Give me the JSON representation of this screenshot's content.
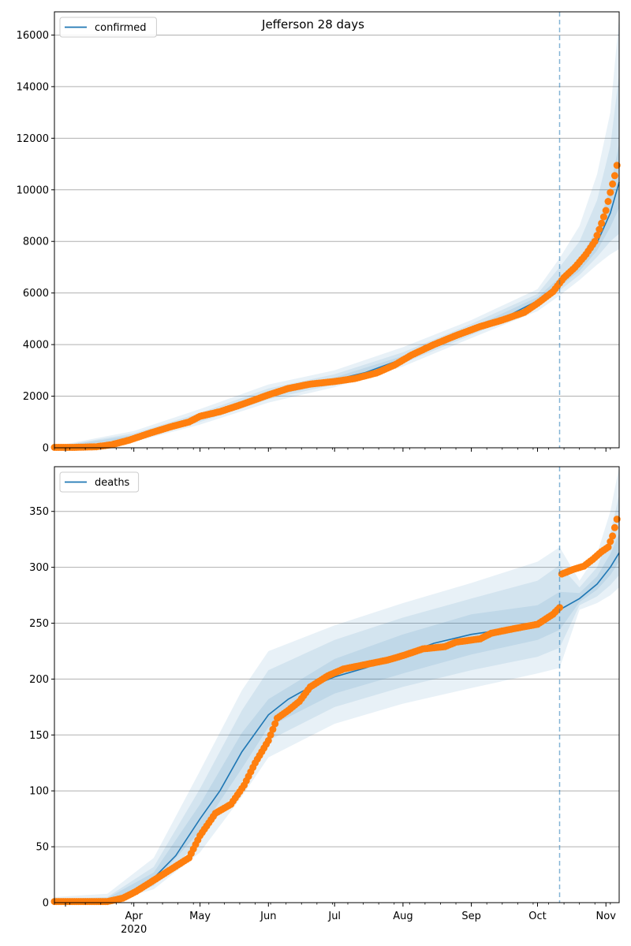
{
  "chart_data": [
    {
      "type": "line",
      "title": "Jefferson 28 days",
      "legend": {
        "placement": "top-left",
        "entries": [
          "confirmed"
        ]
      },
      "grid": "horizontal",
      "x_axis": {
        "type": "date",
        "range": [
          "2020-02-25",
          "2020-11-07"
        ],
        "ticks": [],
        "year_label": "",
        "forecast_start": "2020-10-11"
      },
      "y_axis": {
        "range": [
          0,
          16900
        ],
        "ticks": [
          0,
          2000,
          4000,
          6000,
          8000,
          10000,
          12000,
          14000,
          16000
        ]
      },
      "series": [
        {
          "name": "confirmed",
          "kind": "model-median",
          "color": "#1f77b4",
          "points": [
            [
              "2020-02-25",
              10
            ],
            [
              "2020-03-10",
              30
            ],
            [
              "2020-03-20",
              130
            ],
            [
              "2020-04-01",
              420
            ],
            [
              "2020-04-15",
              780
            ],
            [
              "2020-05-01",
              1150
            ],
            [
              "2020-05-15",
              1560
            ],
            [
              "2020-06-01",
              2050
            ],
            [
              "2020-06-15",
              2400
            ],
            [
              "2020-07-01",
              2630
            ],
            [
              "2020-07-15",
              2920
            ],
            [
              "2020-08-01",
              3450
            ],
            [
              "2020-08-15",
              4000
            ],
            [
              "2020-09-01",
              4550
            ],
            [
              "2020-09-15",
              5000
            ],
            [
              "2020-10-01",
              5700
            ],
            [
              "2020-10-11",
              6400
            ],
            [
              "2020-10-20",
              7050
            ],
            [
              "2020-10-28",
              7950
            ],
            [
              "2020-11-03",
              9100
            ],
            [
              "2020-11-07",
              10300
            ]
          ]
        }
      ],
      "observed": {
        "color": "#ff7f0e",
        "points": [
          [
            "2020-02-25",
            15
          ],
          [
            "2020-03-05",
            15
          ],
          [
            "2020-03-15",
            40
          ],
          [
            "2020-03-22",
            120
          ],
          [
            "2020-03-30",
            300
          ],
          [
            "2020-04-08",
            560
          ],
          [
            "2020-04-18",
            820
          ],
          [
            "2020-04-26",
            1000
          ],
          [
            "2020-05-01",
            1220
          ],
          [
            "2020-05-10",
            1400
          ],
          [
            "2020-05-20",
            1680
          ],
          [
            "2020-06-01",
            2050
          ],
          [
            "2020-06-10",
            2300
          ],
          [
            "2020-06-20",
            2470
          ],
          [
            "2020-07-01",
            2570
          ],
          [
            "2020-07-10",
            2680
          ],
          [
            "2020-07-20",
            2900
          ],
          [
            "2020-07-28",
            3200
          ],
          [
            "2020-08-05",
            3600
          ],
          [
            "2020-08-15",
            4000
          ],
          [
            "2020-08-25",
            4350
          ],
          [
            "2020-09-05",
            4700
          ],
          [
            "2020-09-15",
            4950
          ],
          [
            "2020-09-25",
            5250
          ],
          [
            "2020-10-01",
            5600
          ],
          [
            "2020-10-08",
            6050
          ],
          [
            "2020-10-13",
            6600
          ],
          [
            "2020-10-18",
            7000
          ],
          [
            "2020-10-23",
            7500
          ],
          [
            "2020-10-27",
            8000
          ],
          [
            "2020-10-30",
            8700
          ],
          [
            "2020-11-01",
            9200
          ],
          [
            "2020-11-03",
            9900
          ],
          [
            "2020-11-05",
            10550
          ],
          [
            "2020-11-06",
            10950
          ]
        ]
      },
      "uncertainty_bands": {
        "color": "#1f77b4",
        "opacity": [
          0.1,
          0.1,
          0.1
        ],
        "bands": [
          {
            "x": [
              "2020-02-25",
              "2020-04-01",
              "2020-05-01",
              "2020-06-01",
              "2020-07-01",
              "2020-08-01",
              "2020-09-01",
              "2020-10-01",
              "2020-10-11",
              "2020-10-20",
              "2020-10-28",
              "2020-11-03",
              "2020-11-07"
            ],
            "lower": [
              0,
              230,
              900,
              1750,
              2350,
              3150,
              4250,
              5300,
              5900,
              6500,
              7100,
              7500,
              7700
            ],
            "upper": [
              60,
              650,
              1500,
              2450,
              3000,
              3900,
              4950,
              6150,
              7350,
              8600,
              10600,
              13000,
              16700
            ]
          },
          {
            "x": [
              "2020-02-25",
              "2020-04-01",
              "2020-05-01",
              "2020-06-01",
              "2020-07-01",
              "2020-08-01",
              "2020-09-01",
              "2020-10-01",
              "2020-10-11",
              "2020-10-20",
              "2020-10-28",
              "2020-11-03",
              "2020-11-07"
            ],
            "lower": [
              0,
              300,
              1000,
              1880,
              2450,
              3270,
              4370,
              5450,
              6100,
              6700,
              7400,
              8000,
              8300
            ],
            "upper": [
              40,
              560,
              1350,
              2300,
              2850,
              3700,
              4800,
              5970,
              7000,
              8000,
              9600,
              11700,
              14500
            ]
          },
          {
            "x": [
              "2020-02-25",
              "2020-04-01",
              "2020-05-01",
              "2020-06-01",
              "2020-07-01",
              "2020-08-01",
              "2020-09-01",
              "2020-10-01",
              "2020-10-11",
              "2020-10-20",
              "2020-10-28",
              "2020-11-03",
              "2020-11-07"
            ],
            "lower": [
              0,
              360,
              1080,
              1970,
              2540,
              3360,
              4460,
              5570,
              6250,
              6850,
              7650,
              8550,
              9300
            ],
            "upper": [
              25,
              490,
              1230,
              2160,
              2730,
              3560,
              4650,
              5840,
              6600,
              7300,
              8500,
              10100,
              11800
            ]
          }
        ]
      }
    },
    {
      "type": "line",
      "title": "",
      "legend": {
        "placement": "top-left",
        "entries": [
          "deaths"
        ]
      },
      "grid": "horizontal",
      "x_axis": {
        "type": "date",
        "range": [
          "2020-02-25",
          "2020-11-07"
        ],
        "ticks": [
          "Apr",
          "May",
          "Jun",
          "Jul",
          "Aug",
          "Sep",
          "Oct",
          "Nov"
        ],
        "year_label": "2020",
        "forecast_start": "2020-10-11"
      },
      "y_axis": {
        "range": [
          0,
          390
        ],
        "ticks": [
          0,
          50,
          100,
          150,
          200,
          250,
          300,
          350
        ]
      },
      "series": [
        {
          "name": "deaths",
          "kind": "model-median",
          "color": "#1f77b4",
          "points": [
            [
              "2020-02-25",
              0
            ],
            [
              "2020-03-20",
              2
            ],
            [
              "2020-03-30",
              8
            ],
            [
              "2020-04-10",
              22
            ],
            [
              "2020-04-20",
              42
            ],
            [
              "2020-05-01",
              75
            ],
            [
              "2020-05-10",
              100
            ],
            [
              "2020-05-20",
              135
            ],
            [
              "2020-06-01",
              168
            ],
            [
              "2020-06-10",
              182
            ],
            [
              "2020-06-20",
              193
            ],
            [
              "2020-07-01",
              202
            ],
            [
              "2020-07-15",
              210
            ],
            [
              "2020-08-01",
              222
            ],
            [
              "2020-08-15",
              232
            ],
            [
              "2020-09-01",
              240
            ],
            [
              "2020-09-15",
              244
            ],
            [
              "2020-10-01",
              250
            ],
            [
              "2020-10-11",
              262
            ],
            [
              "2020-10-20",
              272
            ],
            [
              "2020-10-28",
              285
            ],
            [
              "2020-11-03",
              300
            ],
            [
              "2020-11-07",
              313
            ]
          ]
        }
      ],
      "observed": {
        "color": "#ff7f0e",
        "points": [
          [
            "2020-02-25",
            1
          ],
          [
            "2020-03-10",
            1
          ],
          [
            "2020-03-20",
            1
          ],
          [
            "2020-03-27",
            4
          ],
          [
            "2020-04-02",
            10
          ],
          [
            "2020-04-10",
            20
          ],
          [
            "2020-04-18",
            30
          ],
          [
            "2020-04-26",
            40
          ],
          [
            "2020-05-01",
            60
          ],
          [
            "2020-05-08",
            80
          ],
          [
            "2020-05-15",
            88
          ],
          [
            "2020-05-21",
            105
          ],
          [
            "2020-05-26",
            125
          ],
          [
            "2020-06-01",
            145
          ],
          [
            "2020-06-05",
            165
          ],
          [
            "2020-06-10",
            172
          ],
          [
            "2020-06-15",
            180
          ],
          [
            "2020-06-20",
            193
          ],
          [
            "2020-06-28",
            203
          ],
          [
            "2020-07-05",
            209
          ],
          [
            "2020-07-15",
            213
          ],
          [
            "2020-07-25",
            217
          ],
          [
            "2020-08-01",
            221
          ],
          [
            "2020-08-10",
            227
          ],
          [
            "2020-08-20",
            229
          ],
          [
            "2020-08-25",
            233
          ],
          [
            "2020-09-05",
            236
          ],
          [
            "2020-09-10",
            241
          ],
          [
            "2020-09-20",
            245
          ],
          [
            "2020-10-01",
            249
          ],
          [
            "2020-10-08",
            258
          ],
          [
            "2020-10-11",
            264
          ],
          [
            "2020-10-12",
            294
          ],
          [
            "2020-10-17",
            298
          ],
          [
            "2020-10-22",
            301
          ],
          [
            "2020-10-26",
            307
          ],
          [
            "2020-10-30",
            314
          ],
          [
            "2020-11-02",
            318
          ],
          [
            "2020-11-04",
            328
          ],
          [
            "2020-11-06",
            343
          ]
        ]
      },
      "uncertainty_bands": {
        "color": "#1f77b4",
        "opacity": [
          0.1,
          0.1,
          0.1
        ],
        "bands": [
          {
            "x": [
              "2020-02-25",
              "2020-03-20",
              "2020-04-10",
              "2020-05-01",
              "2020-05-20",
              "2020-06-01",
              "2020-07-01",
              "2020-08-01",
              "2020-09-01",
              "2020-10-01",
              "2020-10-11",
              "2020-10-20",
              "2020-10-28",
              "2020-11-03",
              "2020-11-07"
            ],
            "lower": [
              0,
              0,
              12,
              45,
              95,
              130,
              160,
              178,
              192,
              205,
              210,
              262,
              268,
              275,
              282
            ],
            "upper": [
              5,
              8,
              40,
              118,
              190,
              225,
              248,
              268,
              286,
              305,
              318,
              288,
              312,
              350,
              390
            ]
          },
          {
            "x": [
              "2020-02-25",
              "2020-03-20",
              "2020-04-10",
              "2020-05-01",
              "2020-05-20",
              "2020-06-01",
              "2020-07-01",
              "2020-08-01",
              "2020-09-01",
              "2020-10-01",
              "2020-10-11",
              "2020-10-20",
              "2020-10-28",
              "2020-11-03",
              "2020-11-07"
            ],
            "lower": [
              0,
              1,
              15,
              55,
              108,
              145,
              175,
              193,
              208,
              220,
              228,
              266,
              274,
              284,
              293
            ],
            "upper": [
              3,
              5,
              32,
              102,
              172,
              208,
              235,
              255,
              272,
              288,
              302,
              282,
              300,
              330,
              365
            ]
          },
          {
            "x": [
              "2020-02-25",
              "2020-03-20",
              "2020-04-10",
              "2020-05-01",
              "2020-05-20",
              "2020-06-01",
              "2020-07-01",
              "2020-08-01",
              "2020-09-01",
              "2020-10-01",
              "2020-10-11",
              "2020-10-20",
              "2020-10-28",
              "2020-11-03",
              "2020-11-07"
            ],
            "lower": [
              0,
              1,
              18,
              64,
              120,
              157,
              187,
              205,
              222,
              235,
              244,
              269,
              280,
              293,
              305
            ],
            "upper": [
              2,
              4,
              27,
              88,
              152,
              182,
              218,
              240,
              258,
              266,
              278,
              277,
              292,
              312,
              330
            ]
          }
        ]
      }
    }
  ]
}
